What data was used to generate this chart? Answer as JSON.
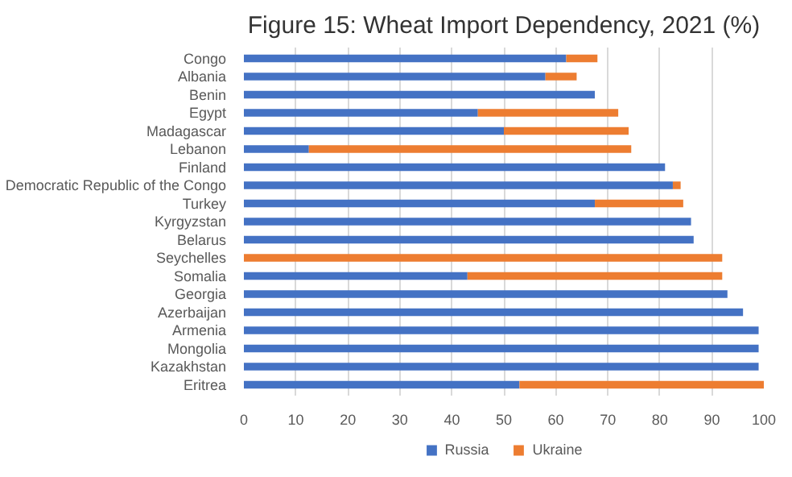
{
  "chart_data": {
    "type": "bar",
    "title": "Figure 15: Wheat Import Dependency, 2021 (%)",
    "orientation": "horizontal",
    "stacked": true,
    "categories": [
      "Congo",
      "Albania",
      "Benin",
      "Egypt",
      "Madagascar",
      "Lebanon",
      "Finland",
      "Democratic Republic of the Congo",
      "Turkey",
      "Kyrgyzstan",
      "Belarus",
      "Seychelles",
      "Somalia",
      "Georgia",
      "Azerbaijan",
      "Armenia",
      "Mongolia",
      "Kazakhstan",
      "Eritrea"
    ],
    "series": [
      {
        "name": "Russia",
        "color": "#4472c4",
        "values": [
          62,
          58,
          67.5,
          45,
          50,
          12.5,
          81,
          82.5,
          67.5,
          86,
          86.5,
          0,
          43,
          93,
          96,
          99,
          99,
          99,
          53
        ]
      },
      {
        "name": "Ukraine",
        "color": "#ed7d31",
        "values": [
          6,
          6,
          0,
          27,
          24,
          62,
          0,
          1.5,
          17,
          0,
          0,
          92,
          49,
          0,
          0,
          0,
          0,
          0,
          47
        ]
      }
    ],
    "xlim": [
      0,
      100
    ],
    "xticks": [
      0,
      10,
      20,
      30,
      40,
      50,
      60,
      70,
      80,
      90,
      100
    ],
    "grid": "x",
    "legend": "bottom"
  }
}
